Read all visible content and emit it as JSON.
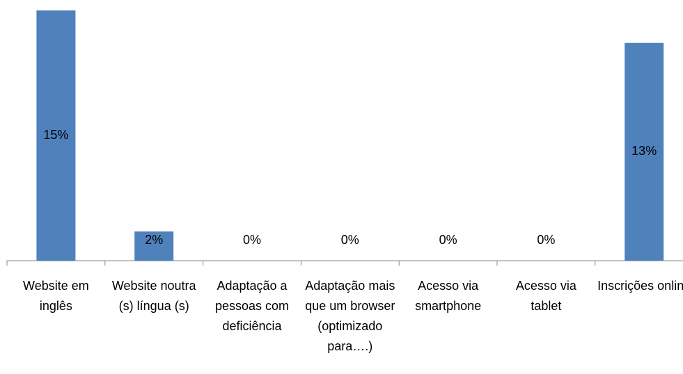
{
  "chart_data": {
    "type": "bar",
    "categories": [
      "Website em inglês",
      "Website noutra (s) língua (s)",
      "Adaptação a pessoas com deficiência",
      "Adaptação mais que um browser (optimizado para….)",
      "Acesso via smartphone",
      "Acesso via tablet",
      "Inscrições online"
    ],
    "values": [
      15.4,
      1.8,
      0,
      0,
      0,
      0,
      13.4
    ],
    "value_labels": [
      "15%",
      "2%",
      "0%",
      "0%",
      "0%",
      "0%",
      "13%"
    ],
    "color": "#4f81bd"
  }
}
